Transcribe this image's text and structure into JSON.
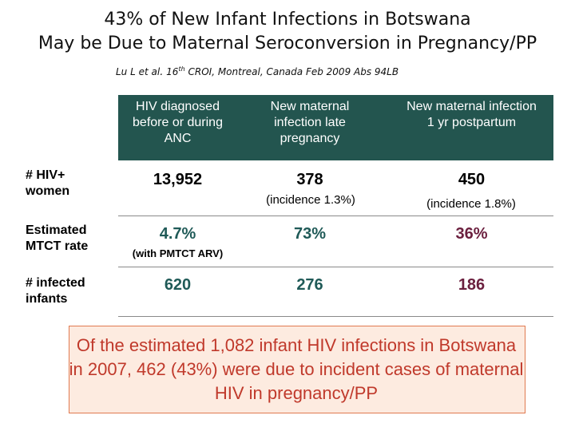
{
  "title": {
    "line1": "43% of New Infant Infections in Botswana",
    "line2": "May be Due to Maternal Seroconversion in Pregnancy/PP"
  },
  "citation": {
    "author": "Lu L et al",
    "dot": ".",
    "num": "16",
    "ord": "th",
    "rest": "CROI, Montreal, Canada Feb 2009 Abs 94LB"
  },
  "table": {
    "headers": [
      "HIV diagnosed before or during ANC",
      "New maternal infection late pregnancy",
      "New maternal infection 1 yr postpartum"
    ],
    "rows": [
      {
        "label": "# HIV+ women",
        "values": [
          "13,952",
          "378",
          "450"
        ],
        "subs": [
          "",
          "(incidence 1.3%)",
          "(incidence 1.8%)"
        ]
      },
      {
        "label": "Estimated MTCT rate",
        "values": [
          "4.7%",
          "73%",
          "36%"
        ],
        "subs": [
          "(with PMTCT ARV)",
          "",
          ""
        ]
      },
      {
        "label": "# infected infants",
        "values": [
          "620",
          "276",
          "186"
        ],
        "subs": [
          "",
          "",
          ""
        ]
      }
    ]
  },
  "callout": "Of the estimated 1,082 infant HIV infections in Botswana in 2007, 462 (43%) were due to incident cases of maternal HIV in pregnancy/PP",
  "colors": {
    "header_bg": "#23554f",
    "teal_value": "#1f5a57",
    "maroon_value": "#6b1f3e",
    "callout_text": "#c0392b",
    "callout_bg": "#fdebe0"
  }
}
